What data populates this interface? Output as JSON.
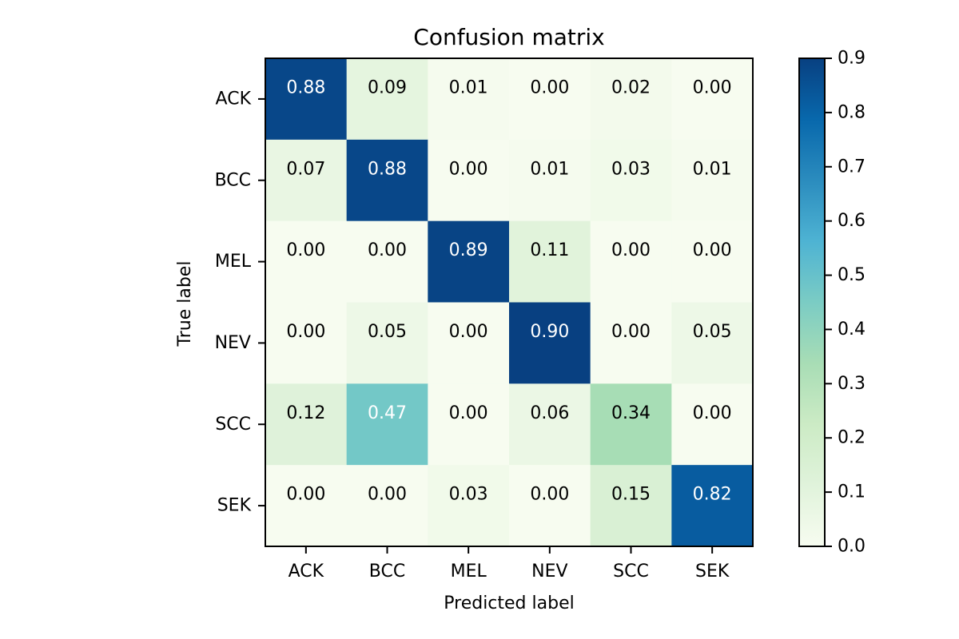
{
  "chart_data": {
    "type": "heatmap",
    "title": "Confusion matrix",
    "xlabel": "Predicted label",
    "ylabel": "True label",
    "x_categories": [
      "ACK",
      "BCC",
      "MEL",
      "NEV",
      "SCC",
      "SEK"
    ],
    "y_categories": [
      "ACK",
      "BCC",
      "MEL",
      "NEV",
      "SCC",
      "SEK"
    ],
    "values": [
      [
        0.88,
        0.09,
        0.01,
        0.0,
        0.02,
        0.0
      ],
      [
        0.07,
        0.88,
        0.0,
        0.01,
        0.03,
        0.01
      ],
      [
        0.0,
        0.0,
        0.89,
        0.11,
        0.0,
        0.0
      ],
      [
        0.0,
        0.05,
        0.0,
        0.9,
        0.0,
        0.05
      ],
      [
        0.12,
        0.47,
        0.0,
        0.06,
        0.34,
        0.0
      ],
      [
        0.0,
        0.0,
        0.03,
        0.0,
        0.15,
        0.82
      ]
    ],
    "value_format": "0.00",
    "colormap": "GnBu",
    "vmin": 0.0,
    "vmax": 0.9,
    "colorbar_ticks": [
      "0.0",
      "0.1",
      "0.2",
      "0.3",
      "0.4",
      "0.5",
      "0.6",
      "0.7",
      "0.8",
      "0.9"
    ],
    "text_color_light": "#ffffff",
    "text_color_dark": "#000000",
    "legend": "colorbar-right",
    "grid": false
  }
}
